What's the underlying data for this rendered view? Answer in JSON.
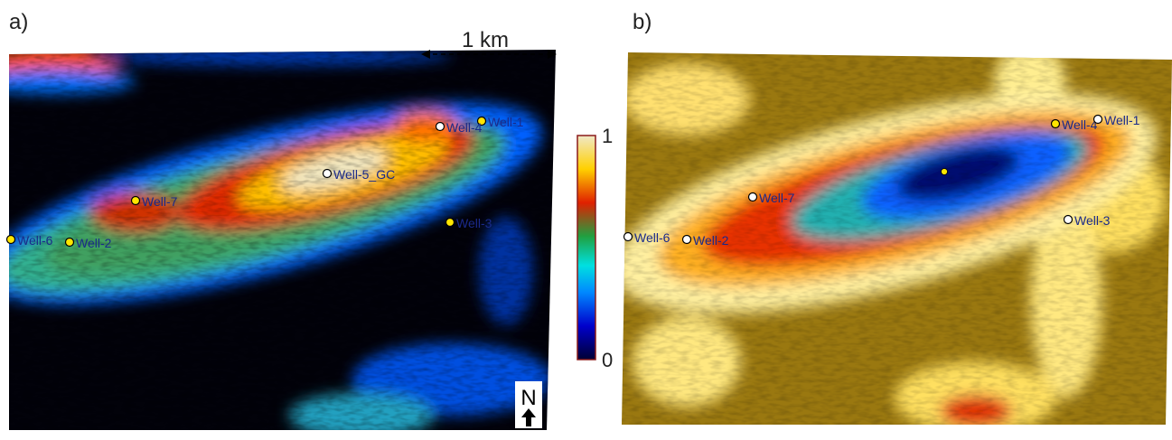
{
  "panels": [
    {
      "label": "a)",
      "scale": "1 km",
      "north": "N",
      "wells": [
        "Well-1",
        "Well-4",
        "Well-5_GC",
        "Well-7",
        "Well-6",
        "Well-2",
        "Well-3"
      ]
    },
    {
      "label": "b)",
      "wells": [
        "Well-4",
        "Well-1",
        "Well-7",
        "Well-6",
        "Well-2",
        "Well-3"
      ]
    }
  ],
  "colorbar": {
    "ticks": [
      0,
      1
    ]
  }
}
